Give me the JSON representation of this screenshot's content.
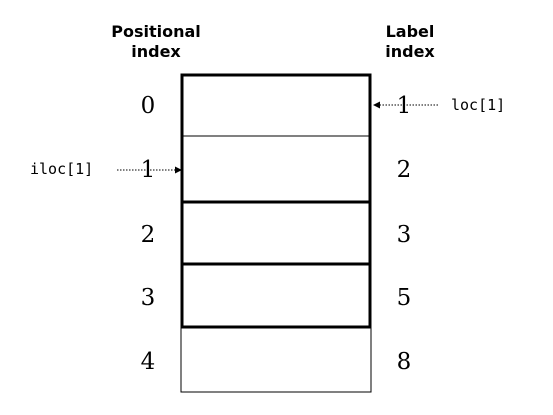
{
  "headers": {
    "positional": [
      "Positional",
      "index"
    ],
    "label": [
      "Label",
      "index"
    ]
  },
  "rows": [
    {
      "position": "0",
      "label": "1"
    },
    {
      "position": "1",
      "label": "2"
    },
    {
      "position": "2",
      "label": "3"
    },
    {
      "position": "3",
      "label": "5"
    },
    {
      "position": "4",
      "label": "8"
    }
  ],
  "annotations": {
    "loc": "loc[1]",
    "iloc": "iloc[1]"
  }
}
